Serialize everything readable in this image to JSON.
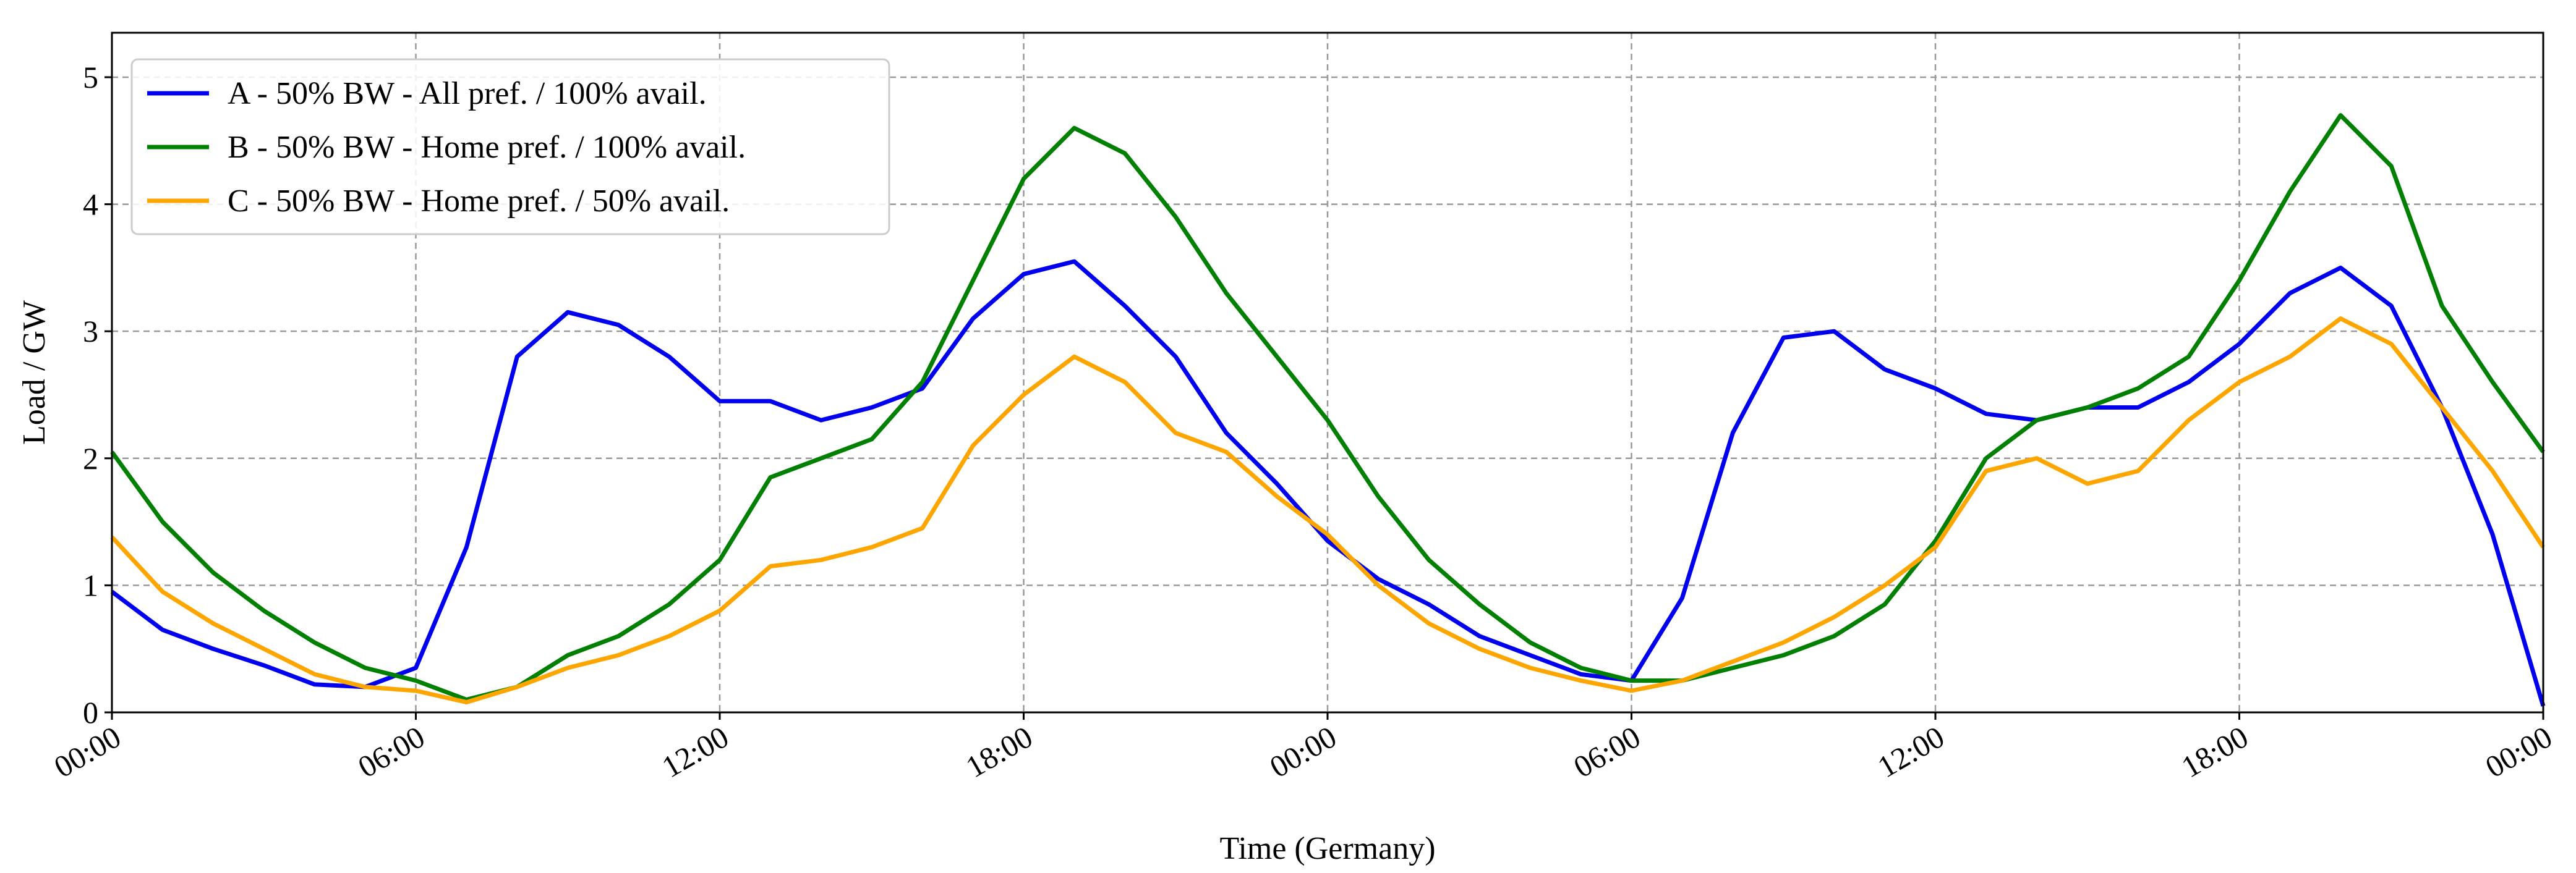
{
  "chart_data": {
    "type": "line",
    "xlabel": "Time (Germany)",
    "ylabel": "Load / GW",
    "x": [
      0,
      1,
      2,
      3,
      4,
      5,
      6,
      7,
      8,
      9,
      10,
      11,
      12,
      13,
      14,
      15,
      16,
      17,
      18,
      19,
      20,
      21,
      22,
      23,
      24,
      25,
      26,
      27,
      28,
      29,
      30,
      31,
      32,
      33,
      34,
      35,
      36,
      37,
      38,
      39,
      40,
      41,
      42,
      43,
      44,
      45,
      46,
      47,
      48
    ],
    "series": [
      {
        "name": "A - 50% BW - All pref. / 100% avail.",
        "color": "#0000ee",
        "values": [
          0.95,
          0.65,
          0.5,
          0.37,
          0.22,
          0.2,
          0.35,
          1.3,
          2.8,
          3.15,
          3.05,
          2.8,
          2.45,
          2.45,
          2.3,
          2.4,
          2.55,
          3.1,
          3.45,
          3.55,
          3.2,
          2.8,
          2.2,
          1.8,
          1.35,
          1.05,
          0.85,
          0.6,
          0.45,
          0.3,
          0.25,
          0.9,
          2.2,
          2.95,
          3.0,
          2.7,
          2.55,
          2.35,
          2.3,
          2.4,
          2.4,
          2.6,
          2.9,
          3.3,
          3.5,
          3.2,
          2.4,
          1.4,
          0.05
        ]
      },
      {
        "name": "B - 50% BW - Home pref. / 100% avail.",
        "color": "#008000",
        "values": [
          2.05,
          1.5,
          1.1,
          0.8,
          0.55,
          0.35,
          0.25,
          0.1,
          0.2,
          0.45,
          0.6,
          0.85,
          1.2,
          1.85,
          2.0,
          2.15,
          2.6,
          3.4,
          4.2,
          4.6,
          4.4,
          3.9,
          3.3,
          2.8,
          2.3,
          1.7,
          1.2,
          0.85,
          0.55,
          0.35,
          0.25,
          0.25,
          0.35,
          0.45,
          0.6,
          0.85,
          1.35,
          2.0,
          2.3,
          2.4,
          2.55,
          2.8,
          3.4,
          4.1,
          4.7,
          4.3,
          3.2,
          2.6,
          2.05
        ]
      },
      {
        "name": "C - 50% BW - Home pref. / 50% avail.",
        "color": "#ffa500",
        "values": [
          1.38,
          0.95,
          0.7,
          0.5,
          0.3,
          0.2,
          0.17,
          0.08,
          0.2,
          0.35,
          0.45,
          0.6,
          0.8,
          1.15,
          1.2,
          1.3,
          1.45,
          2.1,
          2.5,
          2.8,
          2.6,
          2.2,
          2.05,
          1.7,
          1.4,
          1.0,
          0.7,
          0.5,
          0.35,
          0.25,
          0.17,
          0.25,
          0.4,
          0.55,
          0.75,
          1.0,
          1.3,
          1.9,
          2.0,
          1.8,
          1.9,
          2.3,
          2.6,
          2.8,
          3.1,
          2.9,
          2.4,
          1.9,
          1.3
        ]
      }
    ],
    "xlim": [
      0,
      48
    ],
    "ylim": [
      0,
      5.35
    ],
    "xticks": [
      {
        "value": 0,
        "label": "00:00"
      },
      {
        "value": 6,
        "label": "06:00"
      },
      {
        "value": 12,
        "label": "12:00"
      },
      {
        "value": 18,
        "label": "18:00"
      },
      {
        "value": 24,
        "label": "00:00"
      },
      {
        "value": 30,
        "label": "06:00"
      },
      {
        "value": 36,
        "label": "12:00"
      },
      {
        "value": 42,
        "label": "18:00"
      },
      {
        "value": 48,
        "label": "00:00"
      }
    ],
    "yticks": [
      0,
      1,
      2,
      3,
      4,
      5
    ],
    "grid": true,
    "legend": "upper left"
  }
}
